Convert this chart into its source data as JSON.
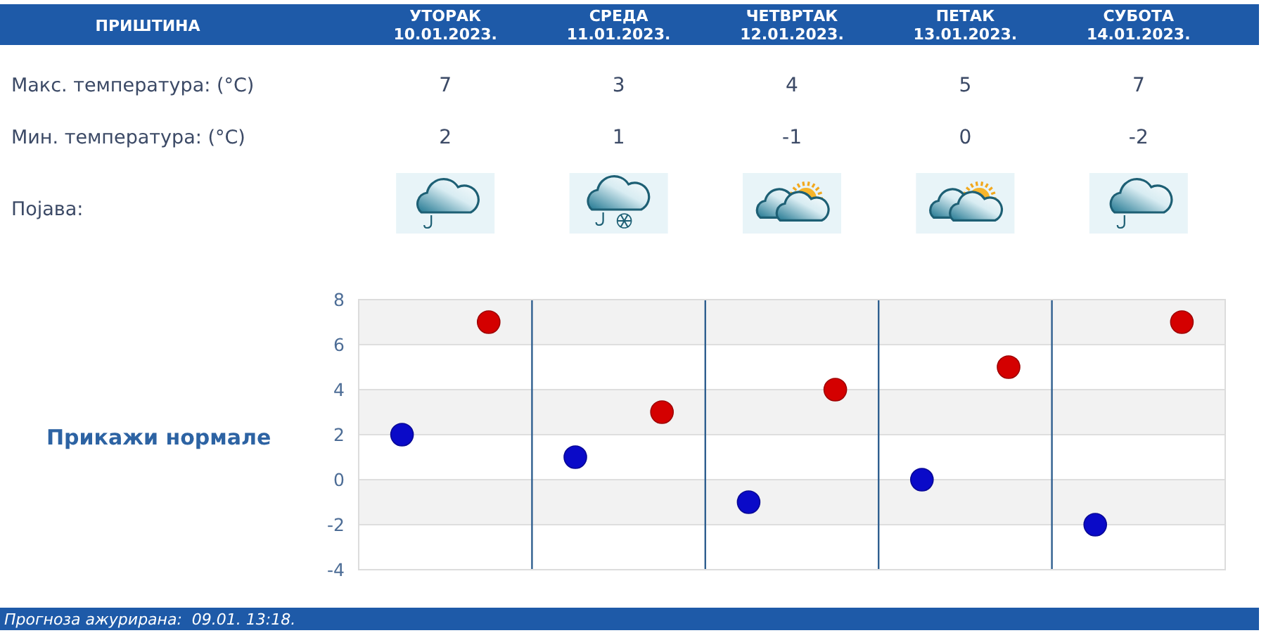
{
  "chart_data": [
    {
      "type": "other",
      "title": "ПРИШТИНА",
      "categories": [
        "УТОРАК 10.01.2023.",
        "СРЕДА 11.01.2023.",
        "ЧЕТВРТАК 12.01.2023.",
        "ПЕТАК 13.01.2023.",
        "СУБОТА 14.01.2023."
      ],
      "series": [
        {
          "name": "Макс. температура: (°C)",
          "values": [
            7,
            3,
            4,
            5,
            7
          ]
        },
        {
          "name": "Мин. температура: (°C)",
          "values": [
            2,
            1,
            -1,
            0,
            -2
          ]
        }
      ],
      "data_labels": true,
      "annotations": [
        "Појава:"
      ]
    },
    {
      "type": "scatter",
      "categories": [
        null,
        null,
        null,
        null,
        null
      ],
      "series": [
        {
          "color": "#d40000",
          "values": [
            7,
            3,
            4,
            5,
            7
          ]
        },
        {
          "color": "#0a0ac8",
          "values": [
            2,
            1,
            -1,
            0,
            -2
          ]
        }
      ],
      "ylim": [
        -4,
        8
      ],
      "yticks": [
        -4,
        -2,
        0,
        2,
        4,
        6,
        8
      ],
      "grid": true,
      "marker": "circle",
      "annotations": [
        "Прикажи нормале",
        "Прогноза ажурирана:  09.01. 13:18."
      ]
    }
  ]
}
